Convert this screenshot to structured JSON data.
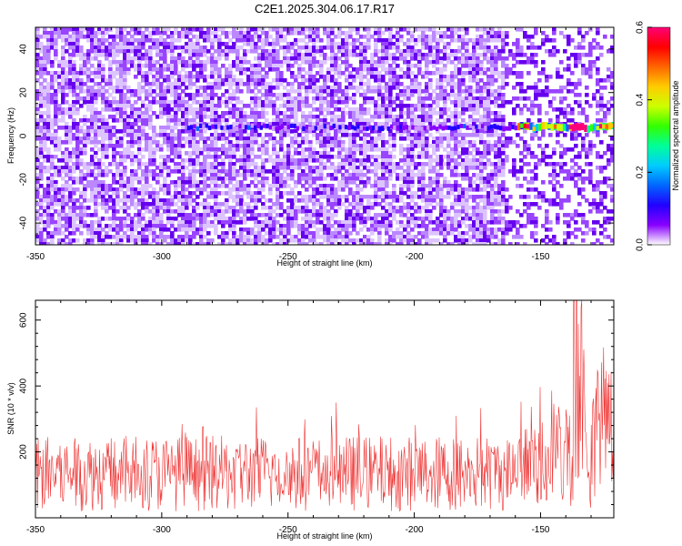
{
  "title": "C2E1.2025.304.06.17.R17",
  "colors": {
    "snr_line": "#ee3333",
    "colormap": [
      "#ffffff",
      "#cc99ff",
      "#8800ff",
      "#2200ff",
      "#0066ff",
      "#00ccff",
      "#00ff99",
      "#33ff00",
      "#ccff00",
      "#ffcc00",
      "#ff6600",
      "#ff0000",
      "#ff0077"
    ]
  },
  "chart_data": [
    {
      "type": "heatmap",
      "name": "spectrogram",
      "xlabel": "Height of straight line (km)",
      "ylabel": "Frequency (Hz)",
      "xlim": [
        -350,
        -121
      ],
      "ylim": [
        -50,
        50
      ],
      "x_ticks": [
        -350,
        -300,
        -250,
        -200,
        -150
      ],
      "x_tick_labels": [
        "-350",
        "-300",
        "-250",
        "-200",
        "-150"
      ],
      "y_ticks": [
        -40,
        -20,
        0,
        20,
        40
      ],
      "y_tick_labels": [
        "-40",
        "-20",
        "0",
        "20",
        "40"
      ],
      "colorbar": {
        "label": "Normalized spectral amplitude",
        "range": [
          0.0,
          0.6
        ],
        "ticks": [
          0.0,
          0.2,
          0.4,
          0.6
        ],
        "tick_labels": [
          "0.0",
          "0.2",
          "0.4",
          "0.6"
        ]
      },
      "signal_band": {
        "freq_hz": 4,
        "x_start": -290,
        "x_end": -121,
        "strong_from": -160,
        "peak_at": -135
      }
    },
    {
      "type": "line",
      "name": "snr",
      "xlabel": "Height of straight line (km)",
      "ylabel": "SNR (10 * v/v)",
      "xlim": [
        -350,
        -121
      ],
      "ylim": [
        0,
        660
      ],
      "x_ticks": [
        -350,
        -300,
        -250,
        -200,
        -150
      ],
      "x_tick_labels": [
        "-350",
        "-300",
        "-250",
        "-200",
        "-150"
      ],
      "y_ticks": [
        200,
        400,
        600
      ],
      "y_tick_labels": [
        "200",
        "400",
        "600"
      ],
      "baseline_range": [
        20,
        250
      ],
      "typical_peaks": 390,
      "max_value": 660
    }
  ]
}
